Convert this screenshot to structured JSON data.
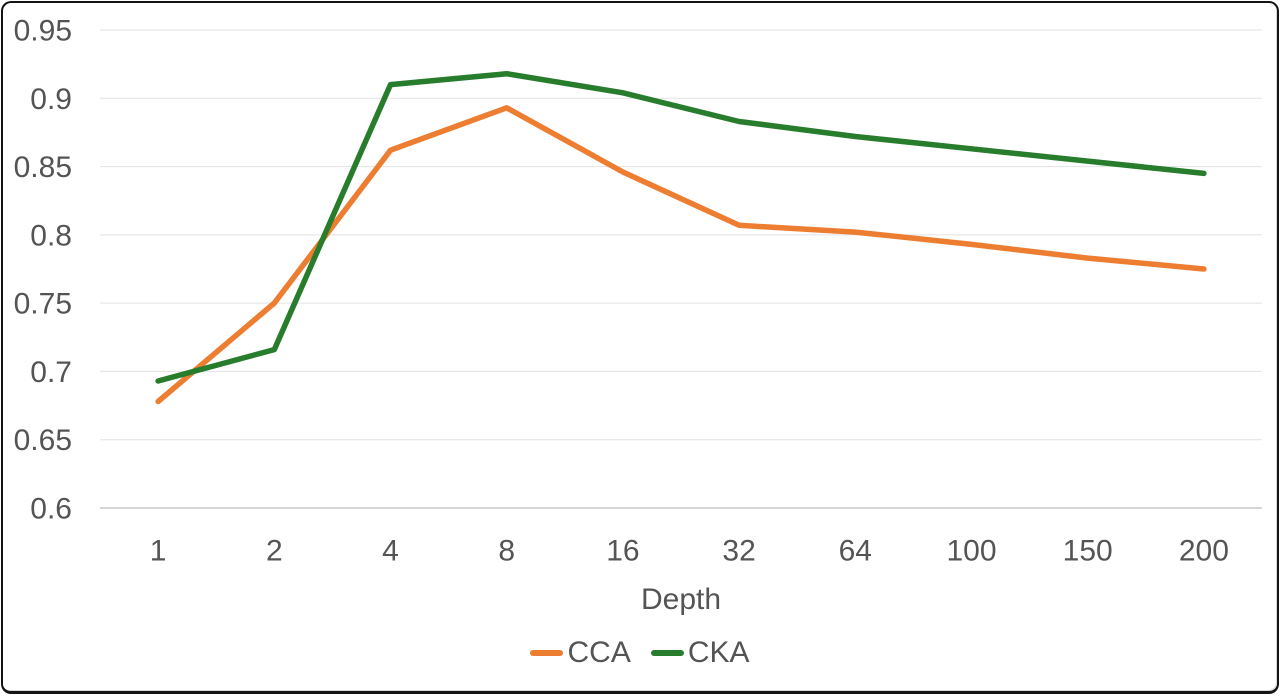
{
  "chart_data": {
    "type": "line",
    "title": "",
    "xlabel": "Depth",
    "ylabel": "",
    "categories": [
      "1",
      "2",
      "4",
      "8",
      "16",
      "32",
      "64",
      "100",
      "150",
      "200"
    ],
    "series": [
      {
        "name": "CCA",
        "color": "#ED7D31",
        "values": [
          0.678,
          0.75,
          0.862,
          0.893,
          0.846,
          0.807,
          0.802,
          0.793,
          0.783,
          0.775
        ]
      },
      {
        "name": "CKA",
        "color": "#287D2D",
        "values": [
          0.693,
          0.716,
          0.91,
          0.918,
          0.904,
          0.883,
          0.872,
          0.863,
          0.854,
          0.845
        ]
      }
    ],
    "y_tick_labels": [
      "0.95",
      "0.9",
      "0.85",
      "0.8",
      "0.75",
      "0.7",
      "0.65",
      "0.6"
    ],
    "ylim": [
      0.6,
      0.95
    ],
    "grid": true,
    "legend_position": "bottom",
    "gridline_color": "#E2E2E2",
    "axis_line_color": "#C9C9C9",
    "tick_text_color": "#545454"
  }
}
